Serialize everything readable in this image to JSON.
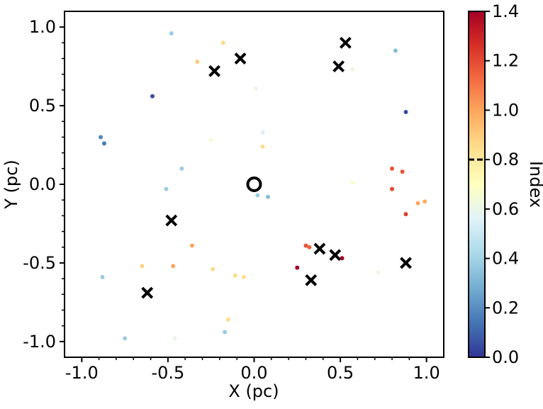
{
  "chart_data": {
    "type": "scatter",
    "xlabel": "X (pc)",
    "ylabel": "Y (pc)",
    "xlim": [
      -1.1,
      1.1
    ],
    "ylim": [
      -1.1,
      1.1
    ],
    "x_ticks": [
      -1.0,
      -0.5,
      0.0,
      0.5,
      1.0
    ],
    "x_tick_labels": [
      "-1.0",
      "-0.5",
      "0.0",
      "0.5",
      "1.0"
    ],
    "y_ticks": [
      -1.0,
      -0.5,
      0.0,
      0.5,
      1.0
    ],
    "y_tick_labels": [
      "-1.0",
      "-0.5",
      "0.0",
      "0.5",
      "1.0"
    ],
    "grid": false,
    "center_marker": {
      "x": 0.0,
      "y": 0.0,
      "shape": "open-circle"
    },
    "x_markers": [
      {
        "x": 0.53,
        "y": 0.9
      },
      {
        "x": -0.08,
        "y": 0.8
      },
      {
        "x": -0.23,
        "y": 0.72
      },
      {
        "x": 0.49,
        "y": 0.75
      },
      {
        "x": -0.48,
        "y": -0.23
      },
      {
        "x": 0.38,
        "y": -0.41
      },
      {
        "x": 0.47,
        "y": -0.45
      },
      {
        "x": 0.88,
        "y": -0.5
      },
      {
        "x": 0.33,
        "y": -0.61
      },
      {
        "x": -0.62,
        "y": -0.69
      }
    ],
    "points": [
      {
        "x": -0.48,
        "y": 0.96,
        "v": 0.38
      },
      {
        "x": -0.18,
        "y": 0.9,
        "v": 0.85
      },
      {
        "x": -0.33,
        "y": 0.78,
        "v": 0.9
      },
      {
        "x": 0.57,
        "y": 0.73,
        "v": 0.62
      },
      {
        "x": 0.82,
        "y": 0.85,
        "v": 0.33
      },
      {
        "x": 0.01,
        "y": 0.61,
        "v": 0.62
      },
      {
        "x": -0.59,
        "y": 0.56,
        "v": 0.05
      },
      {
        "x": 0.88,
        "y": 0.46,
        "v": 0.05
      },
      {
        "x": -0.89,
        "y": 0.3,
        "v": 0.18
      },
      {
        "x": -0.87,
        "y": 0.26,
        "v": 0.15
      },
      {
        "x": -0.25,
        "y": 0.28,
        "v": 0.65
      },
      {
        "x": 0.05,
        "y": 0.33,
        "v": 0.55
      },
      {
        "x": 0.05,
        "y": 0.24,
        "v": 0.85
      },
      {
        "x": -0.42,
        "y": 0.1,
        "v": 0.38
      },
      {
        "x": -0.51,
        "y": -0.03,
        "v": 0.38
      },
      {
        "x": 0.02,
        "y": -0.07,
        "v": 0.38
      },
      {
        "x": 0.08,
        "y": -0.08,
        "v": 0.33
      },
      {
        "x": 0.57,
        "y": 0.01,
        "v": 0.68
      },
      {
        "x": 0.8,
        "y": 0.1,
        "v": 1.18
      },
      {
        "x": 0.86,
        "y": 0.08,
        "v": 1.18
      },
      {
        "x": 0.8,
        "y": -0.03,
        "v": 1.2
      },
      {
        "x": 0.95,
        "y": -0.12,
        "v": 1.0
      },
      {
        "x": 0.99,
        "y": -0.11,
        "v": 0.98
      },
      {
        "x": 0.88,
        "y": -0.19,
        "v": 1.22
      },
      {
        "x": -0.36,
        "y": -0.39,
        "v": 1.0
      },
      {
        "x": 0.3,
        "y": -0.39,
        "v": 1.18
      },
      {
        "x": 0.32,
        "y": -0.4,
        "v": 1.15
      },
      {
        "x": 0.51,
        "y": -0.47,
        "v": 1.4
      },
      {
        "x": 0.25,
        "y": -0.53,
        "v": 1.4
      },
      {
        "x": -0.65,
        "y": -0.52,
        "v": 0.88
      },
      {
        "x": -0.47,
        "y": -0.52,
        "v": 1.0
      },
      {
        "x": -0.24,
        "y": -0.54,
        "v": 0.85
      },
      {
        "x": -0.11,
        "y": -0.58,
        "v": 0.85
      },
      {
        "x": -0.06,
        "y": -0.59,
        "v": 0.85
      },
      {
        "x": 0.72,
        "y": -0.56,
        "v": 0.62
      },
      {
        "x": -0.88,
        "y": -0.59,
        "v": 0.38
      },
      {
        "x": -0.15,
        "y": -0.86,
        "v": 0.85
      },
      {
        "x": -0.17,
        "y": -0.94,
        "v": 0.38
      },
      {
        "x": -0.75,
        "y": -0.98,
        "v": 0.38
      },
      {
        "x": -0.46,
        "y": -0.98,
        "v": 0.6
      }
    ],
    "colorbar": {
      "label": "Index",
      "min": 0.0,
      "max": 1.4,
      "ticks": [
        0.0,
        0.2,
        0.4,
        0.6,
        0.8,
        1.0,
        1.2,
        1.4
      ],
      "tick_labels": [
        "0.0",
        "0.2",
        "0.4",
        "0.6",
        "0.8",
        "1.0",
        "1.2",
        "1.4"
      ],
      "threshold_line": 0.8,
      "colormap": "RdYlBu_r",
      "stops": [
        "#313695",
        "#4575b4",
        "#74add1",
        "#abd9e9",
        "#e0f3f8",
        "#ffffbf",
        "#fee090",
        "#fdae61",
        "#f46d43",
        "#d73027",
        "#a50026"
      ]
    }
  }
}
